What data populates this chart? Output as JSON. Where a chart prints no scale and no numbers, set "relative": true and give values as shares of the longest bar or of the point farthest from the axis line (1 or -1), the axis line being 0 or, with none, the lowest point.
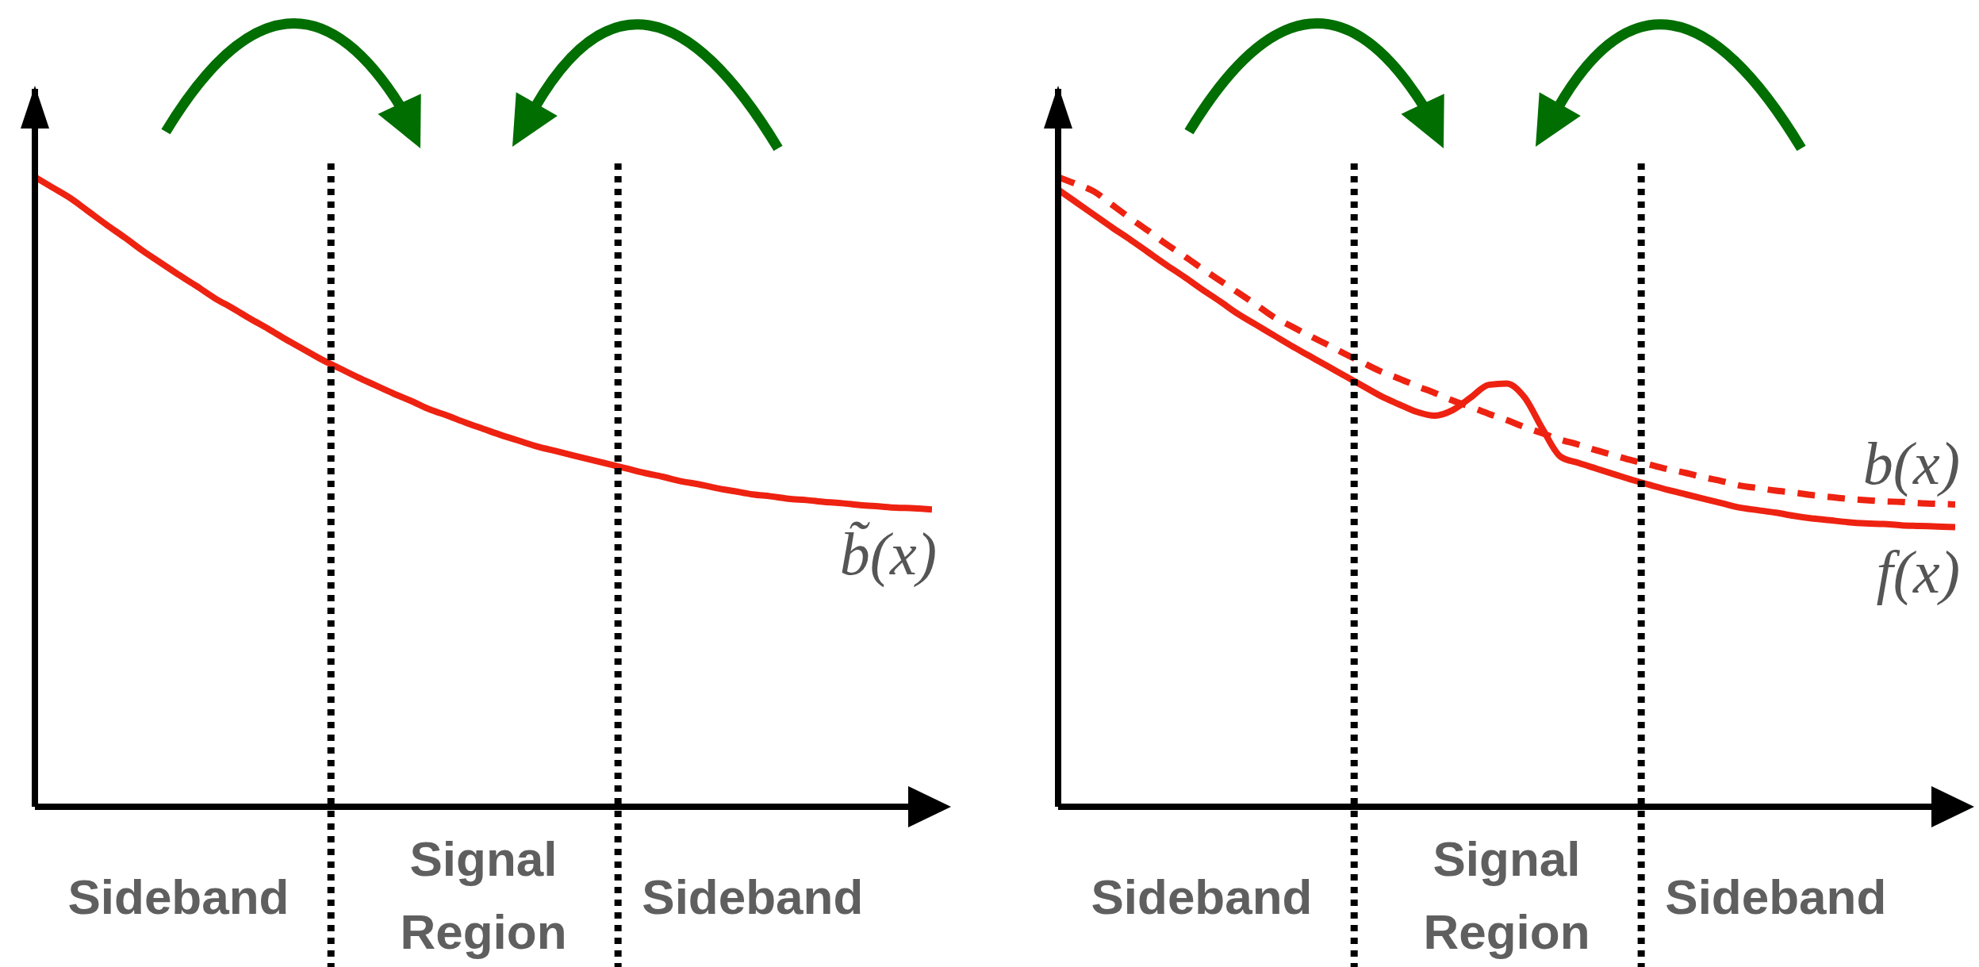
{
  "chart_data": [
    {
      "type": "line",
      "relative": true,
      "tick_labels": "x",
      "grid": false,
      "legend": false,
      "marker": "none",
      "categories": [
        null,
        null,
        null,
        null,
        null,
        null,
        null,
        null,
        "Sideband",
        null,
        null,
        null,
        null,
        null,
        null,
        null,
        null,
        null,
        null,
        null,
        null,
        null,
        null,
        null,
        null,
        "Signal Region",
        null,
        null,
        null,
        null,
        null,
        null,
        null,
        null,
        null,
        null,
        null,
        null,
        null,
        null,
        "Sideband",
        null,
        null,
        null,
        null,
        null,
        null,
        null,
        null,
        null,
        null
      ],
      "series": [
        {
          "name": "b̃(x)",
          "color": "#ee2211",
          "line_style": "solid",
          "values": [
            1,
            0.983,
            0.966,
            0.945,
            0.924,
            0.904,
            0.883,
            0.864,
            0.845,
            0.827,
            0.808,
            0.792,
            0.775,
            0.759,
            0.742,
            0.726,
            0.71,
            0.696,
            0.682,
            0.669,
            0.656,
            0.644,
            0.631,
            0.621,
            0.61,
            0.6,
            0.59,
            0.581,
            0.572,
            0.565,
            0.558,
            0.551,
            0.544,
            0.537,
            0.53,
            0.524,
            0.517,
            0.512,
            0.506,
            0.501,
            0.496,
            0.493,
            0.489,
            0.487,
            0.484,
            0.482,
            0.479,
            0.477,
            0.475,
            0.474,
            0.472
          ]
        }
      ]
    },
    {
      "type": "line",
      "relative": true,
      "tick_labels": "x",
      "grid": false,
      "legend": false,
      "marker": "none",
      "categories": [
        null,
        null,
        null,
        null,
        null,
        null,
        null,
        null,
        "Sideband",
        null,
        null,
        null,
        null,
        null,
        null,
        null,
        null,
        null,
        null,
        null,
        null,
        null,
        null,
        null,
        null,
        "Signal Region",
        null,
        null,
        null,
        null,
        null,
        null,
        null,
        null,
        null,
        null,
        null,
        null,
        null,
        null,
        "Sideband",
        null,
        null,
        null,
        null,
        null,
        null,
        null,
        null,
        null,
        null
      ],
      "series": [
        {
          "name": "b(x)",
          "color": "#ee2211",
          "line_style": "dashed",
          "values": [
            1,
            0.989,
            0.977,
            0.956,
            0.935,
            0.915,
            0.894,
            0.875,
            0.855,
            0.836,
            0.817,
            0.798,
            0.778,
            0.763,
            0.748,
            0.734,
            0.719,
            0.705,
            0.691,
            0.68,
            0.668,
            0.657,
            0.645,
            0.635,
            0.624,
            0.614,
            0.603,
            0.593,
            0.583,
            0.575,
            0.566,
            0.558,
            0.55,
            0.543,
            0.536,
            0.53,
            0.523,
            0.517,
            0.51,
            0.506,
            0.502,
            0.499,
            0.495,
            0.492,
            0.489,
            0.487,
            0.485,
            0.484,
            0.482,
            0.481,
            0.48
          ]
        },
        {
          "name": "f(x)",
          "color": "#ee2211",
          "line_style": "solid",
          "values": [
            0.98,
            0.96,
            0.94,
            0.92,
            0.901,
            0.881,
            0.861,
            0.842,
            0.822,
            0.803,
            0.783,
            0.766,
            0.749,
            0.732,
            0.716,
            0.7,
            0.684,
            0.668,
            0.652,
            0.639,
            0.627,
            0.621,
            0.63,
            0.65,
            0.67,
            0.672,
            0.65,
            0.6,
            0.556,
            0.546,
            0.537,
            0.528,
            0.519,
            0.511,
            0.503,
            0.496,
            0.489,
            0.482,
            0.475,
            0.471,
            0.467,
            0.462,
            0.458,
            0.455,
            0.452,
            0.45,
            0.449,
            0.447,
            0.446,
            0.445,
            0.444
          ]
        }
      ]
    }
  ]
}
